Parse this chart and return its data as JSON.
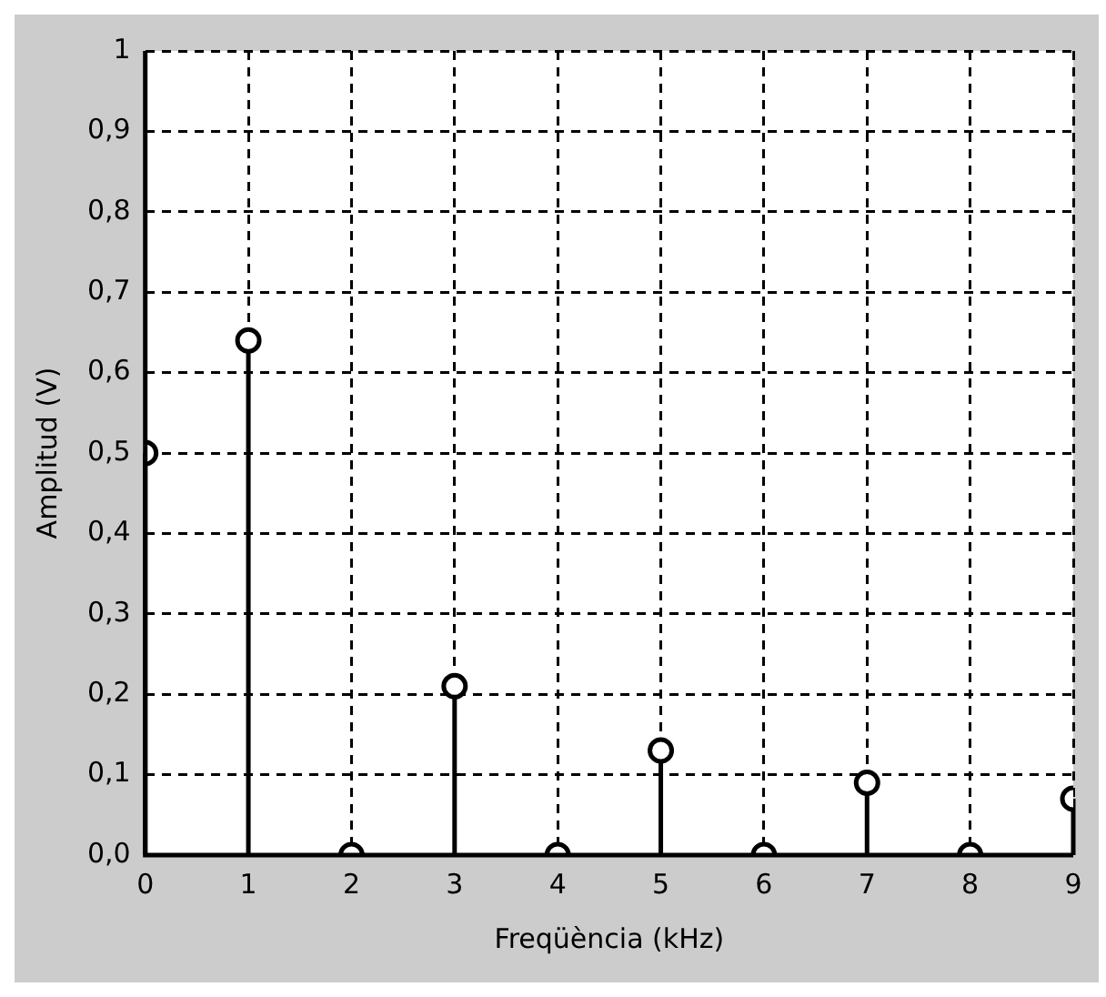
{
  "chart_data": {
    "type": "lollipop",
    "xlabel": "Freqüència (kHz)",
    "ylabel": "Amplitud (V)",
    "x": [
      0,
      1,
      2,
      3,
      4,
      5,
      6,
      7,
      8,
      9
    ],
    "values": [
      0.5,
      0.64,
      0,
      0.21,
      0,
      0.13,
      0,
      0.09,
      0,
      0.07
    ],
    "color": "#000000",
    "marker": "circle",
    "grid": true,
    "xlim": [
      0,
      9
    ],
    "xticks": [
      0,
      1,
      2,
      3,
      4,
      5,
      6,
      7,
      8,
      9
    ],
    "ylim": [
      0,
      1
    ],
    "yticks": [
      {
        "value": 0,
        "label": "0,0"
      },
      {
        "value": 0.1,
        "label": "0,1"
      },
      {
        "value": 0.2,
        "label": "0,2"
      },
      {
        "value": 0.3,
        "label": "0,3"
      },
      {
        "value": 0.4,
        "label": "0,4"
      },
      {
        "value": 0.5,
        "label": "0,5"
      },
      {
        "value": 0.6,
        "label": "0,6"
      },
      {
        "value": 0.7,
        "label": "0,7"
      },
      {
        "value": 0.8,
        "label": "0,8"
      },
      {
        "value": 0.9,
        "label": "0,9"
      },
      {
        "value": 1,
        "label": "1"
      }
    ]
  }
}
